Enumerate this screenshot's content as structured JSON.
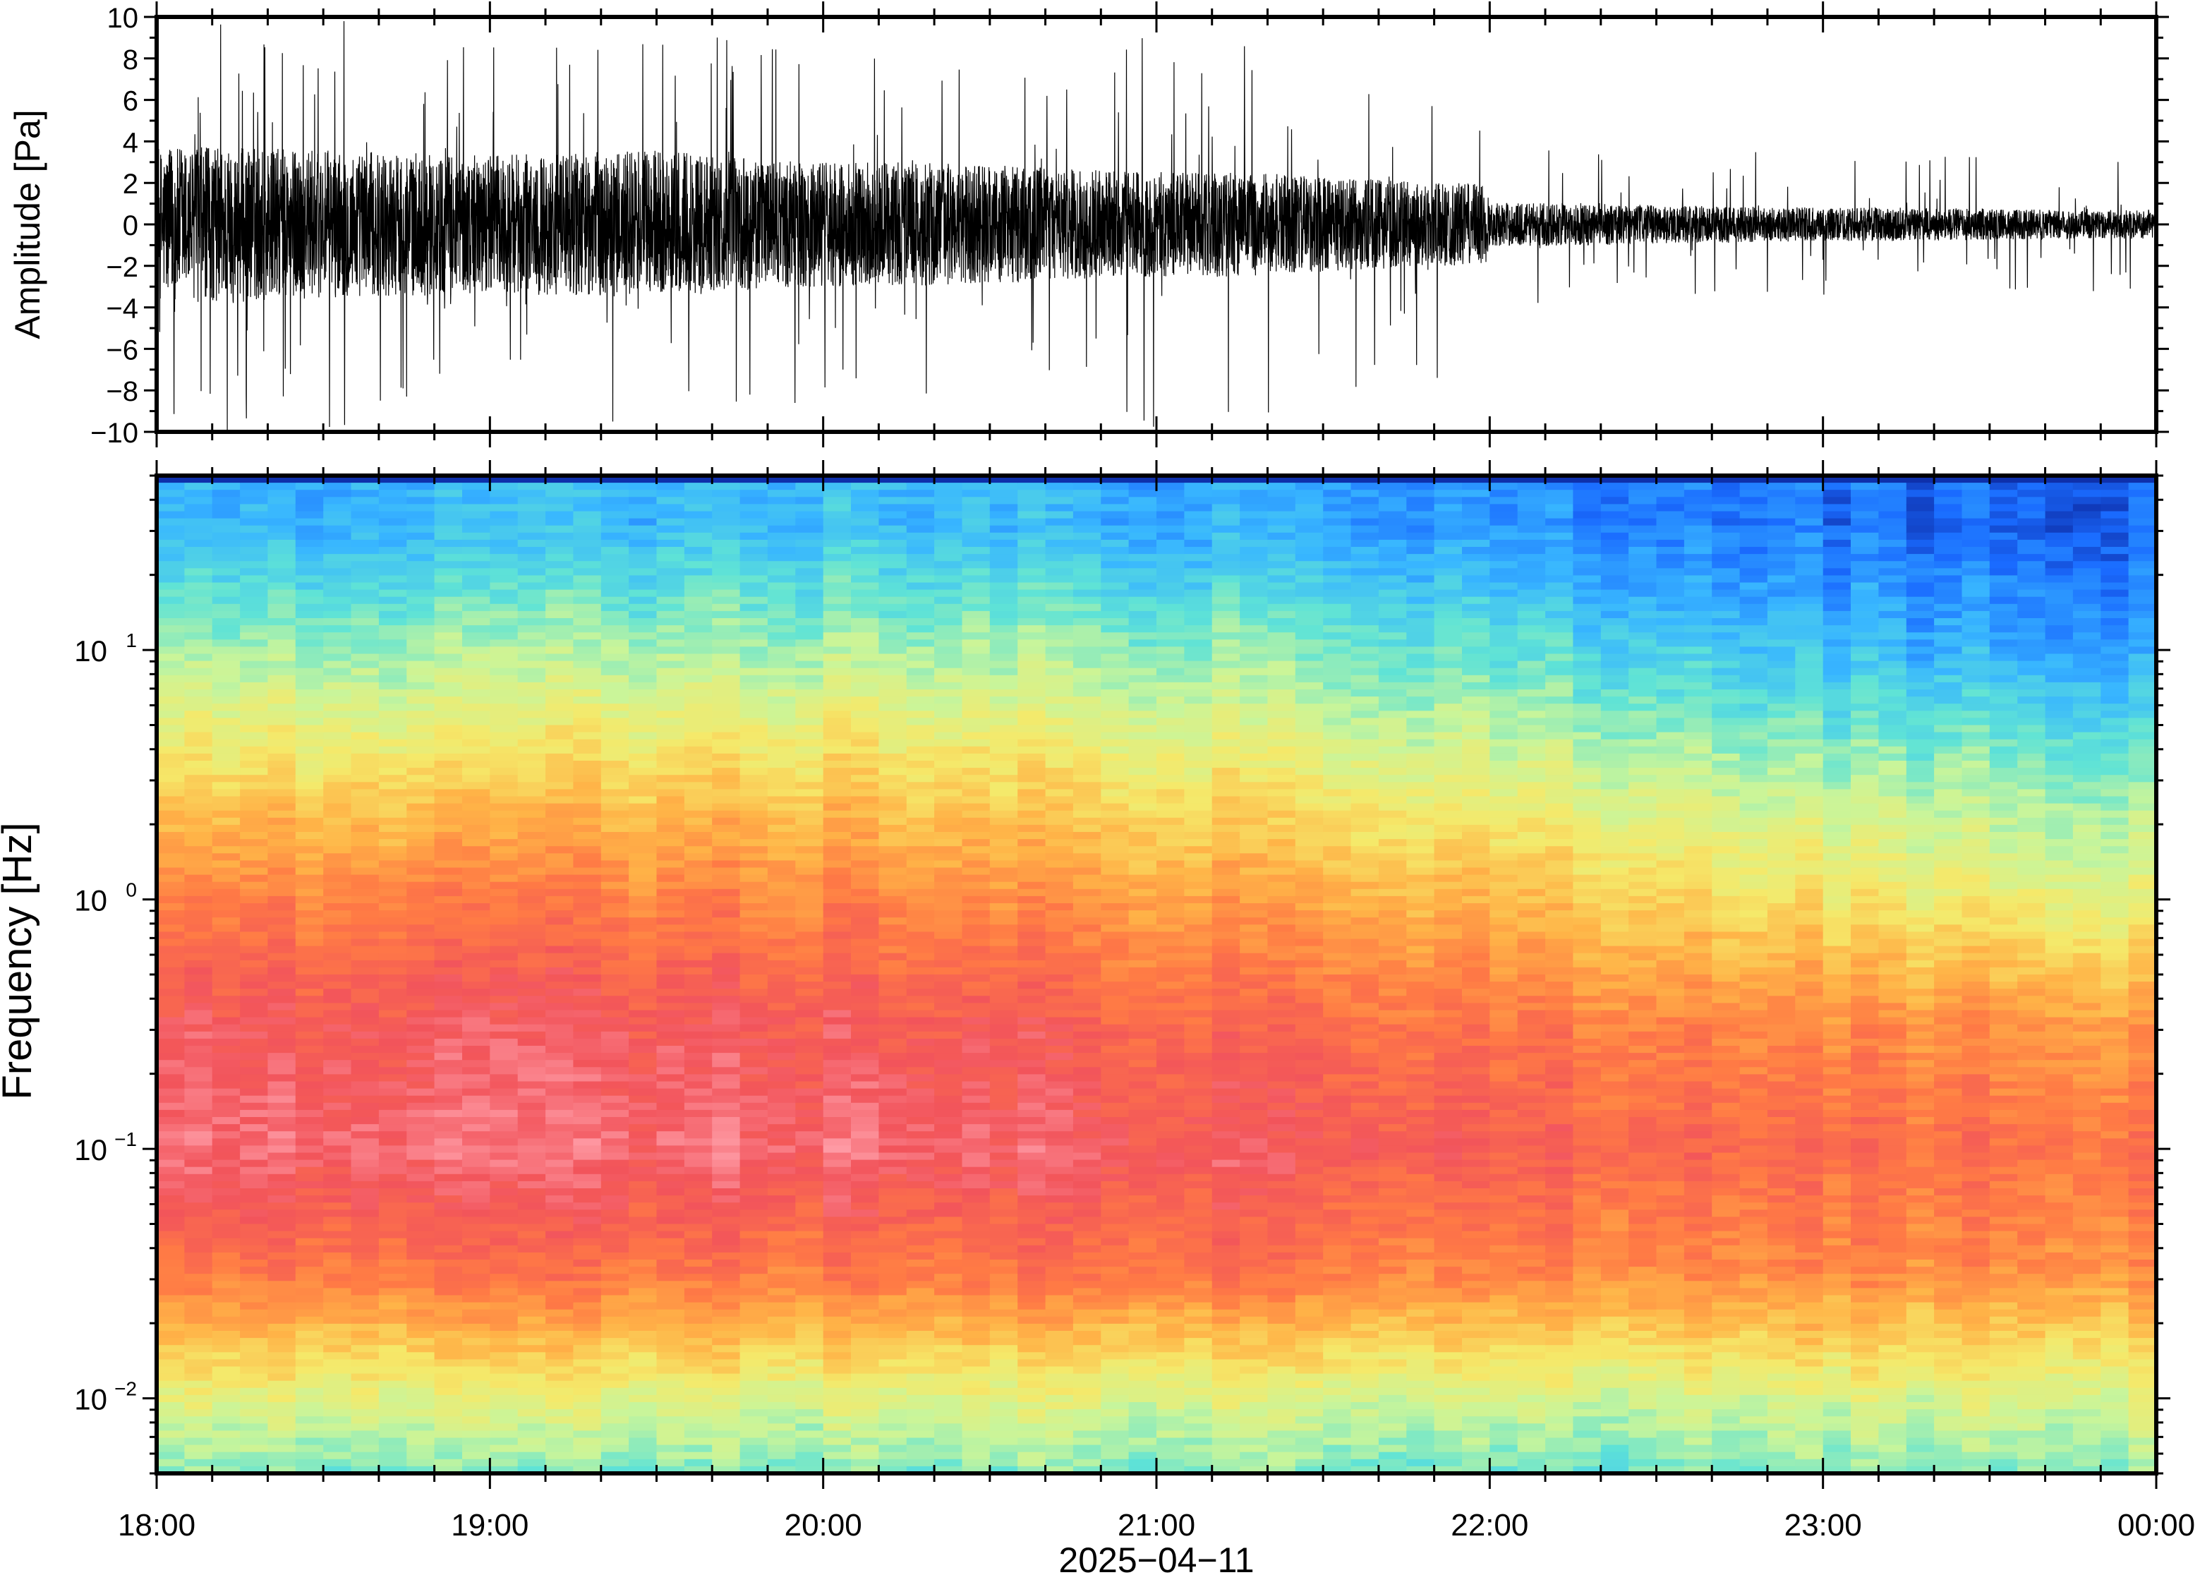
{
  "chart_data": [
    {
      "type": "line",
      "panel": "waveform",
      "ylabel": "Amplitude [Pa]",
      "ylim": [
        -10,
        10
      ],
      "yticks": [
        -10,
        -8,
        -6,
        -4,
        -2,
        0,
        2,
        4,
        6,
        8,
        10
      ],
      "ytick_labels": [
        "−10",
        "−8",
        "−6",
        "−4",
        "−2",
        "0",
        "2",
        "4",
        "6",
        "8",
        "10"
      ],
      "xlim": [
        "18:00",
        "00:00"
      ],
      "envelope": {
        "x_hours": [
          18.0,
          18.25,
          18.5,
          18.75,
          19.0,
          19.25,
          19.5,
          19.75,
          20.0,
          20.25,
          20.5,
          20.75,
          21.0,
          21.25,
          21.5,
          21.75,
          21.99,
          22.0,
          22.25,
          22.5,
          22.75,
          23.0,
          23.25,
          23.5,
          23.75,
          24.0
        ],
        "typical_abs_pa": [
          3.2,
          3.3,
          3.1,
          3.0,
          2.9,
          3.0,
          3.1,
          2.8,
          2.6,
          2.6,
          2.5,
          2.3,
          2.2,
          2.2,
          2.0,
          1.8,
          1.7,
          0.9,
          0.9,
          0.8,
          0.75,
          0.7,
          0.7,
          0.65,
          0.6,
          0.6
        ],
        "peak_abs_pa": [
          10,
          10,
          10,
          9.5,
          9.0,
          9.5,
          10,
          9.0,
          8.5,
          8.5,
          8.5,
          8.0,
          10,
          9.5,
          8.5,
          7.5,
          8.5,
          4.5,
          4.0,
          3.5,
          3.5,
          3.5,
          3.5,
          3.5,
          3.5,
          3.5
        ]
      }
    },
    {
      "type": "heatmap",
      "panel": "spectrogram",
      "ylabel": "Frequency [Hz]",
      "yscale": "log",
      "ylim": [
        0.005,
        50
      ],
      "yticks": [
        0.01,
        0.1,
        1,
        10
      ],
      "ytick_labels": [
        {
          "base": "10",
          "exp": "−2"
        },
        {
          "base": "10",
          "exp": "−1"
        },
        {
          "base": "10",
          "exp": "0"
        },
        {
          "base": "10",
          "exp": "1"
        }
      ],
      "colormap": "spectral (pink-red-orange-yellow-green-cyan-blue)",
      "colormap_stops": [
        "#0a1a8c",
        "#1a6bff",
        "#38b6ff",
        "#5fe3d6",
        "#c9f59a",
        "#f5e96a",
        "#ffb347",
        "#ff7a45",
        "#f2545b",
        "#ff9ea8"
      ],
      "description_grid": {
        "x_hours": [
          18.0,
          19.0,
          20.0,
          21.0,
          22.0,
          23.0,
          24.0
        ],
        "log10_freq": [
          1.5,
          1.0,
          0.5,
          0.0,
          -0.5,
          -1.0,
          -1.5,
          -2.0,
          -2.3
        ],
        "level_0_to_1": [
          [
            0.22,
            0.24,
            0.25,
            0.22,
            0.18,
            0.12,
            0.1
          ],
          [
            0.4,
            0.42,
            0.42,
            0.4,
            0.34,
            0.24,
            0.2
          ],
          [
            0.58,
            0.6,
            0.6,
            0.56,
            0.5,
            0.42,
            0.38
          ],
          [
            0.76,
            0.78,
            0.76,
            0.72,
            0.66,
            0.56,
            0.52
          ],
          [
            0.88,
            0.9,
            0.88,
            0.84,
            0.8,
            0.74,
            0.72
          ],
          [
            0.93,
            0.94,
            0.93,
            0.9,
            0.86,
            0.82,
            0.8
          ],
          [
            0.78,
            0.8,
            0.78,
            0.8,
            0.76,
            0.74,
            0.74
          ],
          [
            0.5,
            0.52,
            0.5,
            0.5,
            0.48,
            0.48,
            0.5
          ],
          [
            0.38,
            0.36,
            0.36,
            0.38,
            0.36,
            0.36,
            0.4
          ]
        ]
      }
    }
  ],
  "xaxis": {
    "tick_labels": [
      "18:00",
      "19:00",
      "20:00",
      "21:00",
      "22:00",
      "23:00",
      "00:00"
    ],
    "date_label": "2025−04−11"
  }
}
